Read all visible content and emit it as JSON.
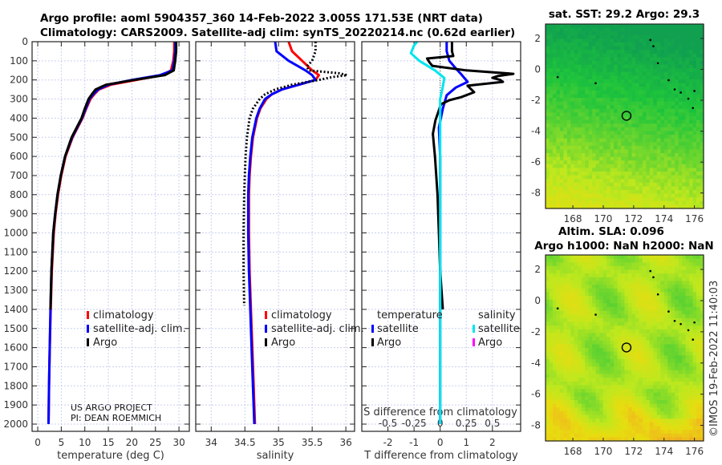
{
  "title_line1": "Argo profile: aoml 5904357_360 14-Feb-2022 3.005S 171.53E (NRT data)",
  "title_line2": "Climatology: CARS2009. Satellite-adj clim: synTS_20220214.nc (0.62d earlier)",
  "credit_line1": "US ARGO PROJECT",
  "credit_line2": "PI: DEAN ROEMMICH",
  "copyright": "©IMOS 19-Feb-2022 11:40:03",
  "colors": {
    "climatology": "#ff0000",
    "satellite": "#0000ff",
    "argo": "#000000",
    "s_satellite": "#00e5ee",
    "s_argo": "#ff00ff"
  },
  "chart_data": [
    {
      "type": "line",
      "xlabel": "temperature (deg C)",
      "ylabel": "",
      "xlim": [
        -1.2,
        32.2
      ],
      "ylim": [
        2040,
        0
      ],
      "xticks": [
        0,
        5,
        10,
        15,
        20,
        25,
        30
      ],
      "yticks": [
        0,
        100,
        200,
        300,
        400,
        500,
        600,
        700,
        800,
        900,
        1000,
        1100,
        1200,
        1300,
        1400,
        1500,
        1600,
        1700,
        1800,
        1900,
        2000
      ],
      "legend": [
        "climatology",
        "satellite-adj. clim.",
        "Argo"
      ],
      "series": [
        {
          "name": "climatology",
          "color": "#ff0000",
          "style": "solid",
          "depth": [
            0,
            50,
            100,
            150,
            175,
            200,
            225,
            250,
            275,
            300,
            350,
            400,
            500,
            600,
            700,
            800,
            900,
            1000,
            1200,
            1400,
            1600,
            1800,
            2000
          ],
          "values": [
            29.0,
            29.0,
            28.8,
            28.3,
            26.5,
            21,
            15.5,
            13,
            12,
            11.2,
            10.3,
            9.5,
            7.4,
            5.9,
            5.0,
            4.3,
            3.8,
            3.4,
            3.0,
            2.75,
            2.55,
            2.4,
            2.3
          ]
        },
        {
          "name": "satellite-adj. clim.",
          "color": "#0000ff",
          "style": "solid",
          "depth": [
            0,
            50,
            100,
            150,
            175,
            200,
            225,
            250,
            275,
            300,
            350,
            400,
            500,
            600,
            700,
            800,
            900,
            1000,
            1200,
            1400,
            1600,
            1800,
            2000
          ],
          "values": [
            29.2,
            29.2,
            29.0,
            28.6,
            26,
            20,
            15,
            12.8,
            11.8,
            11.0,
            10.2,
            9.4,
            7.3,
            5.8,
            4.9,
            4.2,
            3.7,
            3.3,
            2.9,
            2.7,
            2.55,
            2.4,
            2.3
          ]
        },
        {
          "name": "Argo",
          "color": "#000000",
          "style": "solid",
          "depth": [
            0,
            50,
            100,
            150,
            175,
            200,
            225,
            250,
            275,
            300,
            350,
            400,
            500,
            600,
            700,
            800,
            900,
            1000,
            1200,
            1400
          ],
          "values": [
            29.4,
            29.4,
            29.2,
            28.9,
            27,
            20.5,
            14.5,
            12.3,
            11.5,
            10.8,
            10.0,
            9.3,
            7.2,
            5.8,
            4.9,
            4.2,
            3.7,
            3.3,
            2.9,
            2.7
          ]
        }
      ]
    },
    {
      "type": "line",
      "xlabel": "salinity",
      "ylabel": "",
      "xlim": [
        33.77,
        36.13
      ],
      "ylim": [
        2040,
        0
      ],
      "xticks": [
        34,
        34.5,
        35,
        35.5,
        36
      ],
      "legend": [
        "climatology",
        "satellite-adj. clim.",
        "Argo"
      ],
      "series": [
        {
          "name": "climatology",
          "color": "#ff0000",
          "style": "solid",
          "depth": [
            0,
            50,
            100,
            150,
            175,
            200,
            225,
            250,
            275,
            300,
            350,
            400,
            500,
            600,
            700,
            800,
            900,
            1000,
            1200,
            1400,
            1600,
            1800,
            2000
          ],
          "values": [
            35.15,
            35.2,
            35.35,
            35.5,
            35.6,
            35.55,
            35.3,
            35.05,
            34.9,
            34.82,
            34.73,
            34.68,
            34.62,
            34.59,
            34.57,
            34.56,
            34.56,
            34.56,
            34.57,
            34.59,
            34.61,
            34.63,
            34.65
          ]
        },
        {
          "name": "satellite-adj. clim.",
          "color": "#0000ff",
          "style": "solid",
          "depth": [
            0,
            50,
            100,
            150,
            175,
            200,
            225,
            250,
            275,
            300,
            350,
            400,
            500,
            600,
            700,
            800,
            900,
            1000,
            1200,
            1400,
            1600,
            1800,
            2000
          ],
          "values": [
            34.95,
            34.97,
            35.15,
            35.4,
            35.5,
            35.55,
            35.3,
            35.05,
            34.9,
            34.8,
            34.72,
            34.67,
            34.61,
            34.58,
            34.56,
            34.55,
            34.55,
            34.55,
            34.56,
            34.58,
            34.6,
            34.62,
            34.64
          ]
        },
        {
          "name": "Argo",
          "color": "#000000",
          "style": "dotted",
          "depth": [
            0,
            50,
            100,
            130,
            150,
            165,
            175,
            185,
            200,
            225,
            250,
            275,
            300,
            350,
            400,
            500,
            600,
            700,
            800,
            1000,
            1200,
            1380
          ],
          "values": [
            35.55,
            35.55,
            35.5,
            35.42,
            35.45,
            35.9,
            36.02,
            35.8,
            35.6,
            35.2,
            34.95,
            34.8,
            34.72,
            34.62,
            34.57,
            34.53,
            34.51,
            34.5,
            34.49,
            34.48,
            34.48,
            34.49
          ]
        }
      ]
    },
    {
      "type": "line",
      "xlabel": "T difference from climatology",
      "secondary_xlabel": "S difference from climatology",
      "xlim": [
        -3.0,
        3.08
      ],
      "ylim": [
        2040,
        0
      ],
      "xticks": [
        -2,
        -1,
        0,
        1,
        2
      ],
      "secondary_xticks": [
        -0.5,
        -0.25,
        0,
        0.25,
        0.5
      ],
      "secondary_xtick_labels": [
        "-0.5",
        "-0.25",
        "0",
        "0.25",
        "0.5"
      ],
      "s_to_t_scale": 4,
      "legend_headers": [
        "temperature",
        "salinity"
      ],
      "legend": [
        "satellite",
        "Argo",
        "satellite",
        "Argo"
      ],
      "series": [
        {
          "name": "temperature satellite",
          "color": "#0000ff",
          "style": "solid",
          "axis": "T",
          "depth": [
            0,
            50,
            100,
            140,
            170,
            210,
            240,
            280,
            350,
            450,
            600,
            1000,
            1500,
            2000
          ],
          "values": [
            0.25,
            0.25,
            0.35,
            0.6,
            0.8,
            1.05,
            0.6,
            0.25,
            0.1,
            -0.05,
            0,
            0,
            0,
            0
          ]
        },
        {
          "name": "temperature Argo",
          "color": "#000000",
          "style": "solid",
          "axis": "T",
          "depth": [
            0,
            50,
            75,
            88,
            110,
            126,
            150,
            168,
            180,
            189,
            200,
            210,
            230,
            264,
            290,
            306,
            327,
            411,
            482,
            600,
            800,
            1000,
            1200,
            1400
          ],
          "values": [
            0.45,
            0.45,
            0.5,
            -0.5,
            -0.4,
            -0.3,
            1.0,
            2.8,
            2.2,
            2.0,
            2.3,
            2.4,
            1.05,
            1.3,
            0.8,
            0.35,
            0.03,
            -0.18,
            -0.28,
            -0.2,
            -0.1,
            -0.05,
            0.0,
            0.1
          ]
        },
        {
          "name": "salinity satellite",
          "color": "#00e5ee",
          "style": "solid",
          "axis": "S",
          "depth": [
            0,
            20,
            60,
            100,
            150,
            190,
            250,
            300,
            500,
            1000,
            2000
          ],
          "values": [
            -0.22,
            -0.25,
            -0.28,
            -0.2,
            -0.05,
            0.04,
            0.02,
            0.0,
            0.0,
            0.0,
            0.0
          ]
        }
      ]
    },
    {
      "type": "heatmap",
      "title": "sat. SST: 29.2 Argo: 29.3",
      "xlim": [
        166.2,
        176.6
      ],
      "ylim": [
        -9,
        2.93
      ],
      "xticks": [
        168,
        170,
        172,
        174,
        176
      ],
      "yticks": [
        2,
        0,
        -2,
        -4,
        -6,
        -8
      ],
      "marker": {
        "lon": 171.53,
        "lat": -3.005
      }
    },
    {
      "type": "heatmap",
      "title": "Altim. SLA: 0.096",
      "subtitle": "Argo h1000: NaN h2000: NaN",
      "xlim": [
        166.2,
        176.6
      ],
      "ylim": [
        -9,
        2.93
      ],
      "xticks": [
        168,
        170,
        172,
        174,
        176
      ],
      "yticks": [
        2,
        0,
        -2,
        -4,
        -6,
        -8
      ],
      "marker": {
        "lon": 171.53,
        "lat": -3.005
      }
    }
  ]
}
